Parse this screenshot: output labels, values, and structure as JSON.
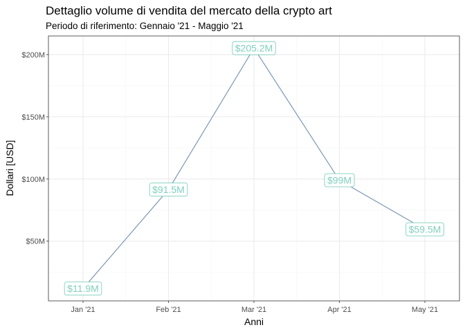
{
  "chart_data": {
    "type": "line",
    "title": "Dettaglio volume di vendita del mercato della crypto art",
    "subtitle": "Periodo di riferimento: Gennaio '21 - Maggio '21",
    "xlabel": "Anni",
    "ylabel": "Dollari [USD]",
    "categories": [
      "Jan '21",
      "Feb '21",
      "Mar '21",
      "Apr '21",
      "May '21"
    ],
    "values": [
      11.9,
      91.5,
      205.2,
      99,
      59.5
    ],
    "data_labels": [
      "$11.9M",
      "$91.5M",
      "$205.2M",
      "$99M",
      "$59.5M"
    ],
    "ylim": [
      2,
      215
    ],
    "yticks": [
      50,
      100,
      150,
      200
    ],
    "ytick_labels": [
      "$50M",
      "$100M",
      "$150M",
      "$200M"
    ],
    "grid": true,
    "legend": "none",
    "colors": {
      "line": "#7b97b5",
      "label": "#7fcfbd",
      "grid_major": "#ebebeb",
      "grid_minor": "#f5f5f5",
      "panel_border": "#333333"
    }
  }
}
